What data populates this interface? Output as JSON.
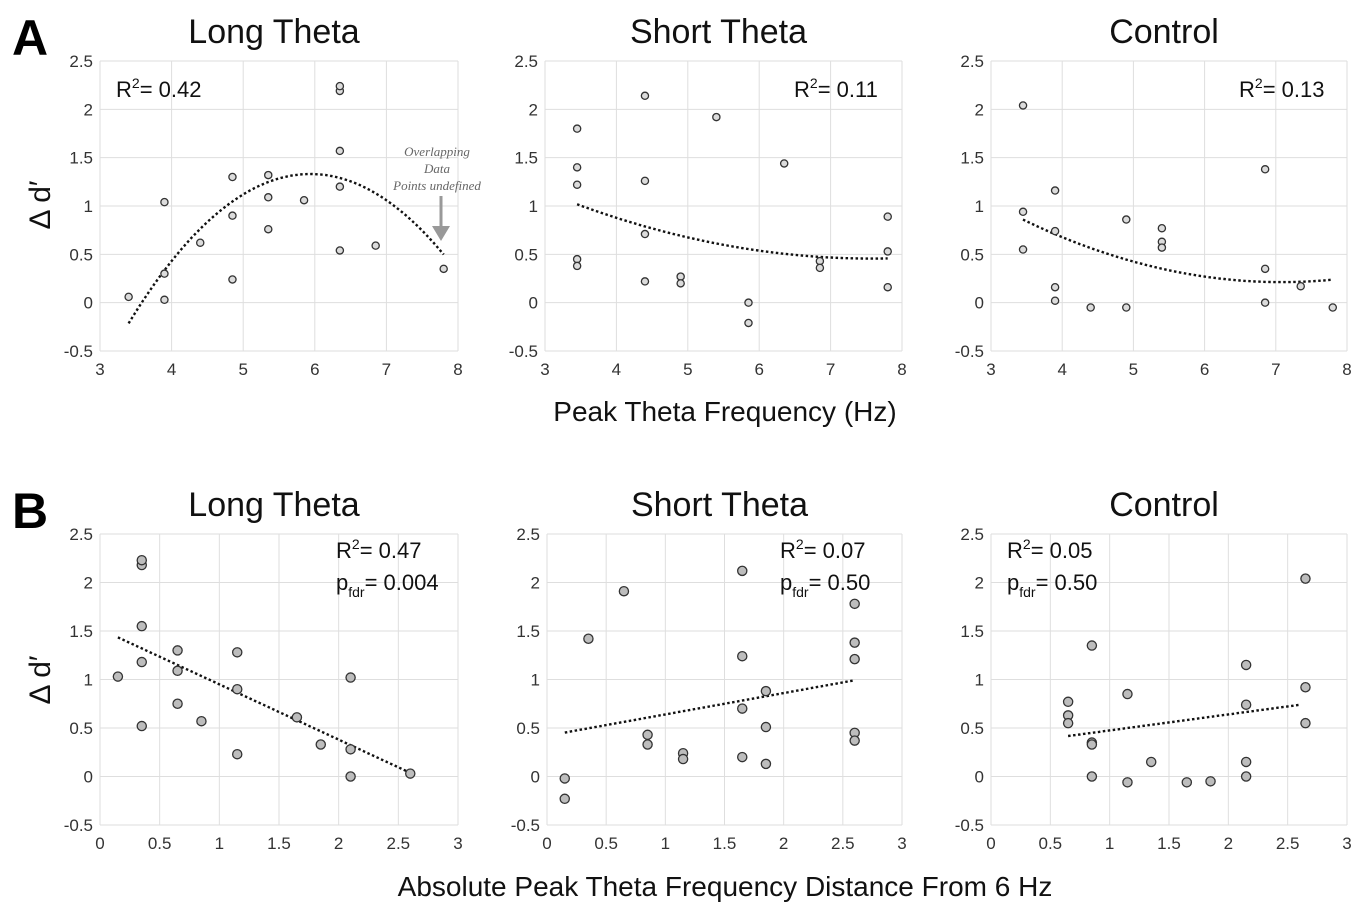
{
  "figure": {
    "panel_labels": [
      "A",
      "B"
    ],
    "row_a_xlabel": "Peak Theta Frequency (Hz)",
    "row_b_xlabel": "Absolute Peak Theta Frequency Distance From 6 Hz",
    "ylabel": "Δ d′",
    "annotation": "Overlapping Data Points"
  },
  "chart_data": [
    {
      "type": "scatter",
      "title": "Long Theta",
      "row": "A",
      "xlim": [
        3,
        8
      ],
      "ylim": [
        -0.5,
        2.5
      ],
      "xticks": [
        "3",
        "4",
        "5",
        "6",
        "7",
        "8"
      ],
      "yticks": [
        "-0.5",
        "0",
        "0.5",
        "1",
        "1.5",
        "2",
        "2.5"
      ],
      "grid": true,
      "marker_fill": "#dcdcdc",
      "stat_r2": "0.42",
      "stat_p": "",
      "stat_position": "top-left",
      "points": [
        [
          3.4,
          0.06
        ],
        [
          3.9,
          0.03
        ],
        [
          3.9,
          0.3
        ],
        [
          3.9,
          1.04
        ],
        [
          4.4,
          0.62
        ],
        [
          4.85,
          0.24
        ],
        [
          4.85,
          0.9
        ],
        [
          4.85,
          1.3
        ],
        [
          5.35,
          0.76
        ],
        [
          5.35,
          1.09
        ],
        [
          5.35,
          1.32
        ],
        [
          5.85,
          1.06
        ],
        [
          6.35,
          0.54
        ],
        [
          6.35,
          1.2
        ],
        [
          6.35,
          1.57
        ],
        [
          6.35,
          2.19
        ],
        [
          6.35,
          2.24
        ],
        [
          6.85,
          0.59
        ],
        [
          7.8,
          0.35
        ]
      ],
      "trend": {
        "type": "quadratic",
        "x_range": [
          3.4,
          7.8
        ],
        "coefficients": [
          -7.13,
          2.85,
          -0.24
        ]
      }
    },
    {
      "type": "scatter",
      "title": "Short Theta",
      "row": "A",
      "xlim": [
        3,
        8
      ],
      "ylim": [
        -0.5,
        2.5
      ],
      "xticks": [
        "3",
        "4",
        "5",
        "6",
        "7",
        "8"
      ],
      "yticks": [
        "-0.5",
        "0",
        "0.5",
        "1",
        "1.5",
        "2",
        "2.5"
      ],
      "grid": true,
      "marker_fill": "#dcdcdc",
      "stat_r2": "0.11",
      "stat_p": "",
      "stat_position": "top-right",
      "points": [
        [
          3.45,
          1.8
        ],
        [
          3.45,
          1.4
        ],
        [
          3.45,
          1.22
        ],
        [
          3.45,
          0.45
        ],
        [
          3.45,
          0.38
        ],
        [
          4.4,
          2.14
        ],
        [
          4.4,
          1.26
        ],
        [
          4.4,
          0.71
        ],
        [
          4.4,
          0.22
        ],
        [
          4.9,
          0.27
        ],
        [
          4.9,
          0.2
        ],
        [
          5.4,
          1.92
        ],
        [
          5.85,
          0.0
        ],
        [
          5.85,
          -0.21
        ],
        [
          6.35,
          1.44
        ],
        [
          6.85,
          0.43
        ],
        [
          6.85,
          0.36
        ],
        [
          7.8,
          0.89
        ],
        [
          7.8,
          0.53
        ],
        [
          7.8,
          0.16
        ]
      ],
      "trend": {
        "type": "quadratic",
        "x_range": [
          3.45,
          7.8
        ],
        "coefficients": [
          2.35,
          -0.5,
          0.033
        ]
      }
    },
    {
      "type": "scatter",
      "title": "Control",
      "row": "A",
      "xlim": [
        3,
        8
      ],
      "ylim": [
        -0.5,
        2.5
      ],
      "xticks": [
        "3",
        "4",
        "5",
        "6",
        "7",
        "8"
      ],
      "yticks": [
        "-0.5",
        "0",
        "0.5",
        "1",
        "1.5",
        "2",
        "2.5"
      ],
      "grid": true,
      "marker_fill": "#dcdcdc",
      "stat_r2": "0.13",
      "stat_p": "",
      "stat_position": "top-right",
      "points": [
        [
          3.45,
          2.04
        ],
        [
          3.45,
          0.94
        ],
        [
          3.45,
          0.55
        ],
        [
          3.9,
          1.16
        ],
        [
          3.9,
          0.74
        ],
        [
          3.9,
          0.16
        ],
        [
          3.9,
          0.02
        ],
        [
          4.4,
          -0.05
        ],
        [
          4.9,
          0.86
        ],
        [
          4.9,
          -0.05
        ],
        [
          5.4,
          0.77
        ],
        [
          5.4,
          0.63
        ],
        [
          5.4,
          0.57
        ],
        [
          6.85,
          1.38
        ],
        [
          6.85,
          0.35
        ],
        [
          6.85,
          0.0
        ],
        [
          7.35,
          0.17
        ],
        [
          7.8,
          -0.05
        ]
      ],
      "trend": {
        "type": "quadratic",
        "x_range": [
          3.45,
          7.8
        ],
        "coefficients": [
          2.67,
          -0.694,
          0.049
        ]
      }
    },
    {
      "type": "scatter",
      "title": "Long Theta",
      "row": "B",
      "xlim": [
        0,
        3
      ],
      "ylim": [
        -0.5,
        2.5
      ],
      "xticks": [
        "0",
        "0.5",
        "1",
        "1.5",
        "2",
        "2.5",
        "3"
      ],
      "yticks": [
        "-0.5",
        "0",
        "0.5",
        "1",
        "1.5",
        "2",
        "2.5"
      ],
      "grid": true,
      "marker_fill": "#bdbdbd",
      "stat_r2": "0.47",
      "stat_p": "0.004",
      "stat_position": "top-right",
      "points": [
        [
          0.15,
          1.03
        ],
        [
          0.35,
          2.18
        ],
        [
          0.35,
          2.23
        ],
        [
          0.35,
          1.55
        ],
        [
          0.35,
          1.18
        ],
        [
          0.35,
          0.52
        ],
        [
          0.65,
          1.3
        ],
        [
          0.65,
          1.09
        ],
        [
          0.65,
          0.75
        ],
        [
          0.85,
          0.57
        ],
        [
          1.15,
          1.28
        ],
        [
          1.15,
          0.9
        ],
        [
          1.15,
          0.23
        ],
        [
          1.65,
          0.61
        ],
        [
          1.85,
          0.33
        ],
        [
          2.1,
          1.02
        ],
        [
          2.1,
          0.28
        ],
        [
          2.1,
          0.0
        ],
        [
          2.6,
          0.03
        ]
      ],
      "trend": {
        "type": "linear",
        "x_range": [
          0.15,
          2.6
        ],
        "coefficients": [
          1.52,
          -0.57
        ]
      }
    },
    {
      "type": "scatter",
      "title": "Short Theta",
      "row": "B",
      "xlim": [
        0,
        3
      ],
      "ylim": [
        -0.5,
        2.5
      ],
      "xticks": [
        "0",
        "0.5",
        "1",
        "1.5",
        "2",
        "2.5",
        "3"
      ],
      "yticks": [
        "-0.5",
        "0",
        "0.5",
        "1",
        "1.5",
        "2",
        "2.5"
      ],
      "grid": true,
      "marker_fill": "#bdbdbd",
      "stat_r2": "0.07",
      "stat_p": "0.50",
      "stat_position": "top-right",
      "points": [
        [
          0.15,
          -0.02
        ],
        [
          0.15,
          -0.23
        ],
        [
          0.35,
          1.42
        ],
        [
          0.65,
          1.91
        ],
        [
          0.85,
          0.43
        ],
        [
          0.85,
          0.33
        ],
        [
          1.15,
          0.24
        ],
        [
          1.15,
          0.18
        ],
        [
          1.65,
          2.12
        ],
        [
          1.65,
          1.24
        ],
        [
          1.65,
          0.7
        ],
        [
          1.65,
          0.2
        ],
        [
          1.85,
          0.88
        ],
        [
          1.85,
          0.51
        ],
        [
          1.85,
          0.13
        ],
        [
          2.6,
          1.78
        ],
        [
          2.6,
          1.38
        ],
        [
          2.6,
          1.21
        ],
        [
          2.6,
          0.45
        ],
        [
          2.6,
          0.37
        ]
      ],
      "trend": {
        "type": "linear",
        "x_range": [
          0.15,
          2.6
        ],
        "coefficients": [
          0.42,
          0.22
        ]
      }
    },
    {
      "type": "scatter",
      "title": "Control",
      "row": "B",
      "xlim": [
        0,
        3
      ],
      "ylim": [
        -0.5,
        2.5
      ],
      "xticks": [
        "0",
        "0.5",
        "1",
        "1.5",
        "2",
        "2.5",
        "3"
      ],
      "yticks": [
        "-0.5",
        "0",
        "0.5",
        "1",
        "1.5",
        "2",
        "2.5"
      ],
      "grid": true,
      "marker_fill": "#bdbdbd",
      "stat_r2": "0.05",
      "stat_p": "0.50",
      "stat_position": "top-left",
      "points": [
        [
          0.65,
          0.77
        ],
        [
          0.65,
          0.63
        ],
        [
          0.65,
          0.55
        ],
        [
          0.85,
          1.35
        ],
        [
          0.85,
          0.35
        ],
        [
          0.85,
          0.33
        ],
        [
          0.85,
          0.0
        ],
        [
          1.15,
          0.85
        ],
        [
          1.15,
          -0.06
        ],
        [
          1.35,
          0.15
        ],
        [
          1.65,
          -0.06
        ],
        [
          1.85,
          -0.05
        ],
        [
          2.15,
          1.15
        ],
        [
          2.15,
          0.74
        ],
        [
          2.15,
          0.15
        ],
        [
          2.15,
          0.0
        ],
        [
          2.65,
          2.04
        ],
        [
          2.65,
          0.92
        ],
        [
          2.65,
          0.55
        ]
      ],
      "trend": {
        "type": "linear",
        "x_range": [
          0.65,
          2.6
        ],
        "coefficients": [
          0.31,
          0.165
        ]
      }
    }
  ]
}
